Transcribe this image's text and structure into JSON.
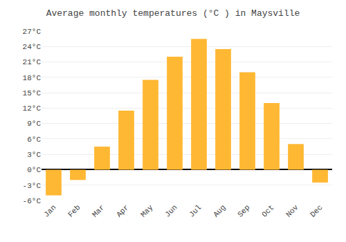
{
  "chart_data": {
    "type": "bar",
    "title": "Average monthly temperatures (°C ) in Maysville",
    "categories": [
      "Jan",
      "Feb",
      "Mar",
      "Apr",
      "May",
      "Jun",
      "Jul",
      "Aug",
      "Sep",
      "Oct",
      "Nov",
      "Dec"
    ],
    "values": [
      -5.0,
      -2.0,
      4.5,
      11.5,
      17.5,
      22.0,
      25.5,
      23.5,
      19.0,
      13.0,
      5.0,
      -2.5
    ],
    "color": "#FFB833",
    "ylim": [
      -6,
      27
    ],
    "yticks": [
      {
        "value": -6,
        "label": "-6°C"
      },
      {
        "value": -3,
        "label": "-3°C"
      },
      {
        "value": 0,
        "label": "0°C"
      },
      {
        "value": 3,
        "label": "3°C"
      },
      {
        "value": 6,
        "label": "6°C"
      },
      {
        "value": 9,
        "label": "9°C"
      },
      {
        "value": 12,
        "label": "12°C"
      },
      {
        "value": 15,
        "label": "15°C"
      },
      {
        "value": 18,
        "label": "18°C"
      },
      {
        "value": 21,
        "label": "21°C"
      },
      {
        "value": 24,
        "label": "24°C"
      },
      {
        "value": 27,
        "label": "27°C"
      }
    ],
    "grid": true
  }
}
